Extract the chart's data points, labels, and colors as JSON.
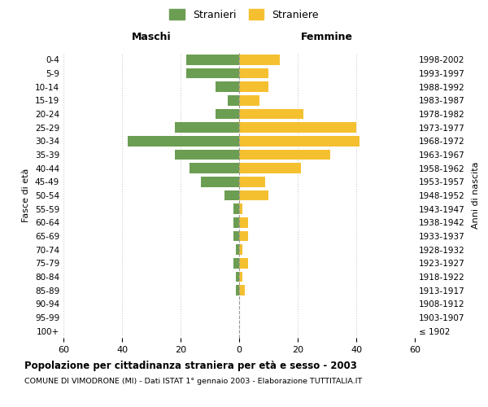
{
  "age_groups": [
    "100+",
    "95-99",
    "90-94",
    "85-89",
    "80-84",
    "75-79",
    "70-74",
    "65-69",
    "60-64",
    "55-59",
    "50-54",
    "45-49",
    "40-44",
    "35-39",
    "30-34",
    "25-29",
    "20-24",
    "15-19",
    "10-14",
    "5-9",
    "0-4"
  ],
  "birth_years": [
    "≤ 1902",
    "1903-1907",
    "1908-1912",
    "1913-1917",
    "1918-1922",
    "1923-1927",
    "1928-1932",
    "1933-1937",
    "1938-1942",
    "1943-1947",
    "1948-1952",
    "1953-1957",
    "1958-1962",
    "1963-1967",
    "1968-1972",
    "1973-1977",
    "1978-1982",
    "1983-1987",
    "1988-1992",
    "1993-1997",
    "1998-2002"
  ],
  "males": [
    0,
    0,
    0,
    1,
    1,
    2,
    1,
    2,
    2,
    2,
    5,
    13,
    17,
    22,
    38,
    22,
    8,
    4,
    8,
    18,
    18
  ],
  "females": [
    0,
    0,
    0,
    2,
    1,
    3,
    1,
    3,
    3,
    1,
    10,
    9,
    21,
    31,
    41,
    40,
    22,
    7,
    10,
    10,
    14
  ],
  "male_color": "#6b9e52",
  "female_color": "#f5c030",
  "xlim": 60,
  "title": "Popolazione per cittadinanza straniera per età e sesso - 2003",
  "subtitle": "COMUNE DI VIMODRONE (MI) - Dati ISTAT 1° gennaio 2003 - Elaborazione TUTTITALIA.IT",
  "xlabel_left": "Maschi",
  "xlabel_right": "Femmine",
  "ylabel_left": "Fasce di età",
  "ylabel_right": "Anni di nascita",
  "legend_male": "Stranieri",
  "legend_female": "Straniere",
  "background_color": "#ffffff",
  "grid_color": "#cccccc",
  "bar_height": 0.75
}
